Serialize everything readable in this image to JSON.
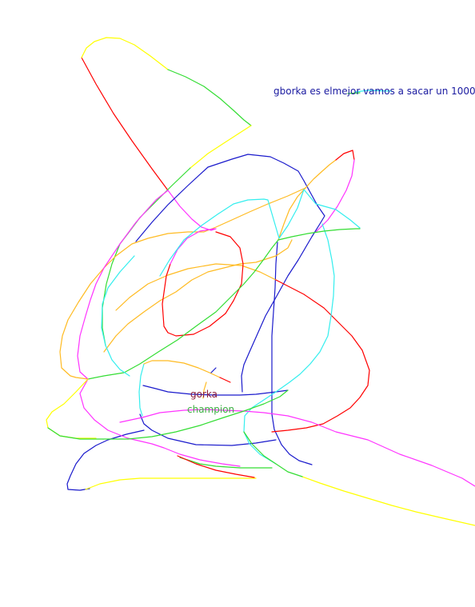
{
  "labels": {
    "top": "gborka es elmejor vamos a sacar un 1000000",
    "gorka": "gorka",
    "champion": "champion"
  },
  "stroke_colors": {
    "red": "#ff0000",
    "yellow": "#ffff00",
    "green": "#33dd33",
    "blue": "#1a1acc",
    "magenta": "#ff33ff",
    "cyan": "#33eeee",
    "orange": "#ffbb22",
    "text_blue": "#1a1aa0",
    "text_maroon": "#8b1a3a",
    "text_green": "#3cb043"
  }
}
